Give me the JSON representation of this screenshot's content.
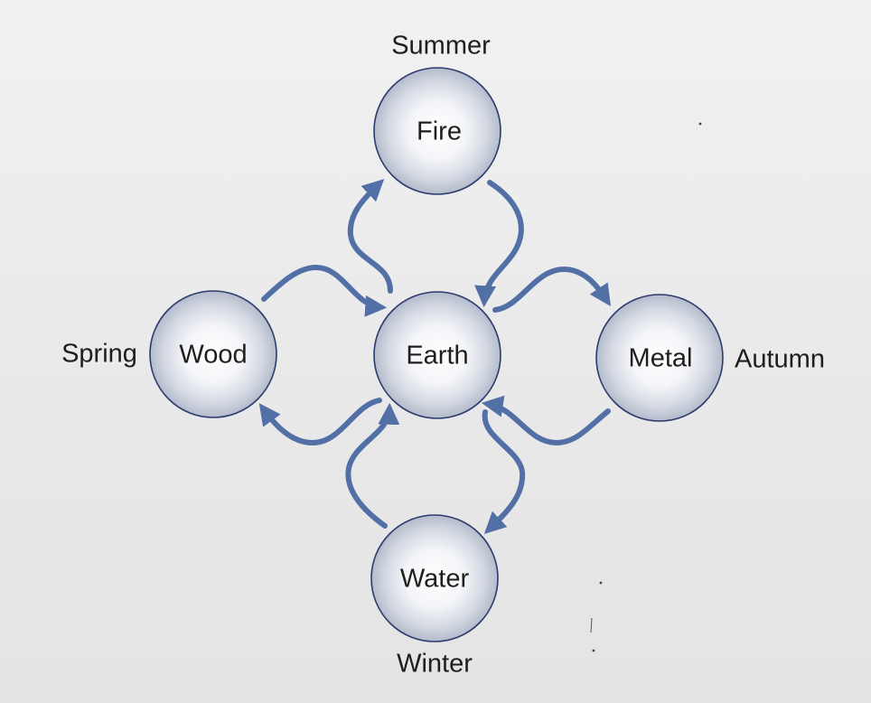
{
  "elements": {
    "fire": "Fire",
    "earth": "Earth",
    "wood": "Wood",
    "metal": "Metal",
    "water": "Water"
  },
  "seasons": {
    "summer": "Summer",
    "spring": "Spring",
    "autumn": "Autumn",
    "winter": "Winter"
  },
  "colors": {
    "arrow": "#5270a6",
    "circle_outline": "#2d3c6e",
    "circle_center": "#ffffff",
    "circle_edge": "#b4bccb"
  }
}
